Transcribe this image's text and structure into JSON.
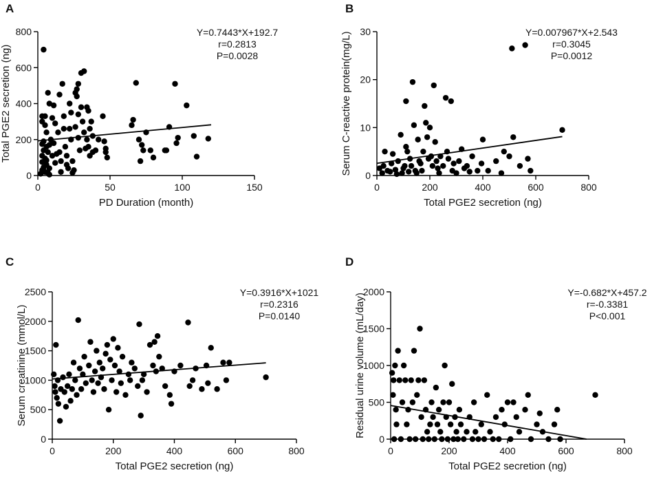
{
  "chart_data": [
    {
      "panel": "A",
      "type": "scatter",
      "xlabel": "PD Duration (month)",
      "ylabel": "Total PGE2 secretion (ng)",
      "xlim": [
        0,
        150
      ],
      "ylim": [
        0,
        800
      ],
      "xticks": [
        0,
        50,
        100,
        150
      ],
      "yticks": [
        0,
        200,
        400,
        600,
        800
      ],
      "annotation": [
        "Y=0.7443*X+192.7",
        "r=0.2813",
        "P=0.0028"
      ],
      "fit": {
        "slope": 0.7443,
        "intercept": 192.7,
        "x_range": [
          0,
          120
        ]
      },
      "points": [
        [
          4,
          700
        ],
        [
          3,
          330
        ],
        [
          5,
          330
        ],
        [
          3,
          300
        ],
        [
          5,
          280
        ],
        [
          6,
          240
        ],
        [
          4,
          190
        ],
        [
          3,
          175
        ],
        [
          6,
          160
        ],
        [
          4,
          140
        ],
        [
          3,
          110
        ],
        [
          5,
          95
        ],
        [
          3,
          75
        ],
        [
          6,
          60
        ],
        [
          4,
          45
        ],
        [
          3,
          30
        ],
        [
          5,
          20
        ],
        [
          7,
          15
        ],
        [
          2,
          10
        ],
        [
          8,
          5
        ],
        [
          9,
          200
        ],
        [
          8,
          170
        ],
        [
          7,
          130
        ],
        [
          10,
          110
        ],
        [
          6,
          85
        ],
        [
          8,
          40
        ],
        [
          7,
          460
        ],
        [
          8,
          400
        ],
        [
          11,
          390
        ],
        [
          10,
          320
        ],
        [
          12,
          290
        ],
        [
          11,
          180
        ],
        [
          13,
          120
        ],
        [
          12,
          70
        ],
        [
          15,
          450
        ],
        [
          17,
          510
        ],
        [
          14,
          240
        ],
        [
          15,
          130
        ],
        [
          16,
          80
        ],
        [
          16,
          20
        ],
        [
          18,
          330
        ],
        [
          18,
          260
        ],
        [
          19,
          160
        ],
        [
          20,
          110
        ],
        [
          20,
          60
        ],
        [
          22,
          400
        ],
        [
          23,
          350
        ],
        [
          22,
          260
        ],
        [
          23,
          200
        ],
        [
          21,
          40
        ],
        [
          24,
          80
        ],
        [
          25,
          30
        ],
        [
          24,
          15
        ],
        [
          26,
          460
        ],
        [
          28,
          510
        ],
        [
          27,
          480
        ],
        [
          27,
          440
        ],
        [
          28,
          340
        ],
        [
          26,
          270
        ],
        [
          28,
          210
        ],
        [
          30,
          570
        ],
        [
          32,
          580
        ],
        [
          30,
          380
        ],
        [
          31,
          300
        ],
        [
          32,
          240
        ],
        [
          29,
          140
        ],
        [
          33,
          150
        ],
        [
          34,
          380
        ],
        [
          34,
          200
        ],
        [
          35,
          360
        ],
        [
          35,
          160
        ],
        [
          36,
          260
        ],
        [
          36,
          110
        ],
        [
          37,
          300
        ],
        [
          38,
          220
        ],
        [
          38,
          130
        ],
        [
          40,
          140
        ],
        [
          42,
          200
        ],
        [
          45,
          330
        ],
        [
          46,
          190
        ],
        [
          47,
          150
        ],
        [
          47,
          130
        ],
        [
          48,
          100
        ],
        [
          65,
          280
        ],
        [
          66,
          310
        ],
        [
          68,
          515
        ],
        [
          70,
          200
        ],
        [
          72,
          170
        ],
        [
          71,
          80
        ],
        [
          73,
          140
        ],
        [
          75,
          240
        ],
        [
          78,
          140
        ],
        [
          80,
          100
        ],
        [
          88,
          140
        ],
        [
          89,
          140
        ],
        [
          91,
          270
        ],
        [
          95,
          510
        ],
        [
          96,
          180
        ],
        [
          97,
          210
        ],
        [
          103,
          390
        ],
        [
          108,
          220
        ],
        [
          110,
          105
        ],
        [
          118,
          205
        ]
      ]
    },
    {
      "panel": "B",
      "type": "scatter",
      "xlabel": "Total PGE2 secretion (ng)",
      "ylabel": "Serum C-reactive protein(mg/L)",
      "xlim": [
        0,
        800
      ],
      "ylim": [
        0,
        30
      ],
      "xticks": [
        0,
        200,
        400,
        600,
        800
      ],
      "yticks": [
        0,
        10,
        20,
        30
      ],
      "annotation": [
        "Y=0.007967*X+2.543",
        "r=0.3045",
        "P=0.0012"
      ],
      "fit": {
        "slope": 0.007967,
        "intercept": 2.543,
        "x_range": [
          0,
          700
        ]
      },
      "points": [
        [
          10,
          1.5
        ],
        [
          20,
          0.5
        ],
        [
          25,
          2
        ],
        [
          30,
          5
        ],
        [
          40,
          1
        ],
        [
          50,
          0.8
        ],
        [
          55,
          2.5
        ],
        [
          60,
          4.5
        ],
        [
          70,
          1.2
        ],
        [
          75,
          0.3
        ],
        [
          80,
          3
        ],
        [
          90,
          8.5
        ],
        [
          95,
          0.5
        ],
        [
          100,
          1.5
        ],
        [
          105,
          2
        ],
        [
          110,
          15.5
        ],
        [
          110,
          6
        ],
        [
          115,
          5
        ],
        [
          120,
          0.8
        ],
        [
          125,
          3.5
        ],
        [
          130,
          2
        ],
        [
          135,
          19.5
        ],
        [
          140,
          10.5
        ],
        [
          145,
          1
        ],
        [
          150,
          0.5
        ],
        [
          155,
          7.5
        ],
        [
          160,
          3
        ],
        [
          165,
          2.5
        ],
        [
          170,
          1
        ],
        [
          175,
          5
        ],
        [
          180,
          14.5
        ],
        [
          185,
          11
        ],
        [
          190,
          8
        ],
        [
          195,
          3.5
        ],
        [
          200,
          10
        ],
        [
          205,
          4
        ],
        [
          210,
          2
        ],
        [
          215,
          18.8
        ],
        [
          220,
          7
        ],
        [
          225,
          3
        ],
        [
          230,
          1.5
        ],
        [
          235,
          0.5
        ],
        [
          240,
          4
        ],
        [
          250,
          2
        ],
        [
          260,
          16.2
        ],
        [
          265,
          5
        ],
        [
          270,
          3.5
        ],
        [
          280,
          15.5
        ],
        [
          285,
          1
        ],
        [
          290,
          2.5
        ],
        [
          300,
          0.5
        ],
        [
          310,
          3
        ],
        [
          320,
          5.5
        ],
        [
          330,
          1.5
        ],
        [
          340,
          2
        ],
        [
          350,
          0.8
        ],
        [
          360,
          4
        ],
        [
          380,
          1
        ],
        [
          395,
          2.5
        ],
        [
          400,
          7.5
        ],
        [
          420,
          1
        ],
        [
          450,
          3
        ],
        [
          470,
          0.5
        ],
        [
          480,
          5
        ],
        [
          500,
          4
        ],
        [
          510,
          26.5
        ],
        [
          515,
          8
        ],
        [
          540,
          2
        ],
        [
          560,
          27.2
        ],
        [
          570,
          3.5
        ],
        [
          580,
          1
        ],
        [
          700,
          9.5
        ]
      ]
    },
    {
      "panel": "C",
      "type": "scatter",
      "xlabel": "Total PGE2 secretion (ng)",
      "ylabel": "Serum creatinine (mmol/L)",
      "xlim": [
        0,
        800
      ],
      "ylim": [
        0,
        2500
      ],
      "xticks": [
        0,
        200,
        400,
        600,
        800
      ],
      "yticks": [
        0,
        500,
        1000,
        1500,
        2000,
        2500
      ],
      "annotation": [
        "Y=0.3916*X+1021",
        "r=0.2316",
        "P=0.0140"
      ],
      "fit": {
        "slope": 0.3916,
        "intercept": 1021,
        "x_range": [
          0,
          700
        ]
      },
      "points": [
        [
          5,
          1100
        ],
        [
          8,
          900
        ],
        [
          10,
          800
        ],
        [
          12,
          1600
        ],
        [
          15,
          700
        ],
        [
          18,
          1000
        ],
        [
          20,
          600
        ],
        [
          25,
          310
        ],
        [
          28,
          850
        ],
        [
          35,
          1050
        ],
        [
          40,
          800
        ],
        [
          45,
          550
        ],
        [
          50,
          900
        ],
        [
          55,
          1100
        ],
        [
          60,
          650
        ],
        [
          65,
          850
        ],
        [
          70,
          1300
        ],
        [
          75,
          1000
        ],
        [
          80,
          750
        ],
        [
          85,
          2020
        ],
        [
          90,
          1200
        ],
        [
          95,
          850
        ],
        [
          100,
          1100
        ],
        [
          105,
          1400
        ],
        [
          110,
          950
        ],
        [
          120,
          1250
        ],
        [
          125,
          1650
        ],
        [
          130,
          1000
        ],
        [
          135,
          800
        ],
        [
          140,
          1150
        ],
        [
          145,
          1500
        ],
        [
          150,
          950
        ],
        [
          155,
          1300
        ],
        [
          160,
          1050
        ],
        [
          165,
          1200
        ],
        [
          170,
          850
        ],
        [
          175,
          1450
        ],
        [
          180,
          1600
        ],
        [
          185,
          500
        ],
        [
          190,
          1350
        ],
        [
          195,
          1000
        ],
        [
          200,
          1700
        ],
        [
          205,
          1250
        ],
        [
          210,
          800
        ],
        [
          215,
          1550
        ],
        [
          220,
          1150
        ],
        [
          225,
          950
        ],
        [
          230,
          1400
        ],
        [
          240,
          750
        ],
        [
          250,
          1100
        ],
        [
          255,
          1000
        ],
        [
          260,
          1300
        ],
        [
          270,
          1200
        ],
        [
          280,
          900
        ],
        [
          285,
          1950
        ],
        [
          290,
          400
        ],
        [
          295,
          1000
        ],
        [
          300,
          1100
        ],
        [
          310,
          800
        ],
        [
          320,
          1600
        ],
        [
          330,
          1250
        ],
        [
          335,
          1650
        ],
        [
          340,
          1150
        ],
        [
          345,
          1750
        ],
        [
          350,
          1400
        ],
        [
          360,
          1200
        ],
        [
          370,
          900
        ],
        [
          385,
          750
        ],
        [
          390,
          600
        ],
        [
          400,
          1150
        ],
        [
          420,
          1250
        ],
        [
          445,
          1980
        ],
        [
          450,
          900
        ],
        [
          460,
          1000
        ],
        [
          470,
          1200
        ],
        [
          490,
          850
        ],
        [
          505,
          1250
        ],
        [
          510,
          950
        ],
        [
          520,
          1550
        ],
        [
          540,
          850
        ],
        [
          560,
          1300
        ],
        [
          570,
          1000
        ],
        [
          580,
          1300
        ],
        [
          700,
          1050
        ]
      ]
    },
    {
      "panel": "D",
      "type": "scatter",
      "xlabel": "Total PGE2 secretion (ng)",
      "ylabel": "Residual urine volume (mL/day)",
      "xlim": [
        0,
        800
      ],
      "ylim": [
        0,
        2000
      ],
      "xticks": [
        0,
        200,
        400,
        600,
        800
      ],
      "yticks": [
        0,
        500,
        1000,
        1500,
        2000
      ],
      "annotation": [
        "Y=-0.682*X+457.2",
        "r=-0.3381",
        "P<0.001"
      ],
      "fit": {
        "slope": -0.682,
        "intercept": 457.2,
        "x_range": [
          0,
          670
        ]
      },
      "points": [
        [
          5,
          900
        ],
        [
          8,
          600
        ],
        [
          10,
          800
        ],
        [
          12,
          0
        ],
        [
          15,
          1000
        ],
        [
          18,
          400
        ],
        [
          20,
          200
        ],
        [
          25,
          1200
        ],
        [
          30,
          800
        ],
        [
          35,
          0
        ],
        [
          40,
          500
        ],
        [
          45,
          1000
        ],
        [
          50,
          800
        ],
        [
          55,
          200
        ],
        [
          60,
          400
        ],
        [
          65,
          0
        ],
        [
          70,
          800
        ],
        [
          75,
          500
        ],
        [
          80,
          1200
        ],
        [
          85,
          0
        ],
        [
          90,
          600
        ],
        [
          95,
          800
        ],
        [
          100,
          1500
        ],
        [
          105,
          300
        ],
        [
          110,
          0
        ],
        [
          115,
          800
        ],
        [
          120,
          400
        ],
        [
          125,
          100
        ],
        [
          130,
          0
        ],
        [
          135,
          200
        ],
        [
          140,
          500
        ],
        [
          145,
          300
        ],
        [
          150,
          0
        ],
        [
          155,
          700
        ],
        [
          160,
          200
        ],
        [
          165,
          400
        ],
        [
          170,
          100
        ],
        [
          175,
          0
        ],
        [
          180,
          500
        ],
        [
          185,
          1000
        ],
        [
          190,
          300
        ],
        [
          195,
          0
        ],
        [
          200,
          500
        ],
        [
          205,
          200
        ],
        [
          210,
          750
        ],
        [
          215,
          0
        ],
        [
          220,
          300
        ],
        [
          225,
          100
        ],
        [
          230,
          0
        ],
        [
          235,
          400
        ],
        [
          240,
          200
        ],
        [
          250,
          0
        ],
        [
          260,
          100
        ],
        [
          270,
          300
        ],
        [
          280,
          0
        ],
        [
          285,
          500
        ],
        [
          290,
          100
        ],
        [
          300,
          0
        ],
        [
          310,
          200
        ],
        [
          320,
          0
        ],
        [
          330,
          600
        ],
        [
          340,
          100
        ],
        [
          350,
          0
        ],
        [
          360,
          300
        ],
        [
          370,
          0
        ],
        [
          380,
          400
        ],
        [
          390,
          200
        ],
        [
          400,
          500
        ],
        [
          410,
          0
        ],
        [
          420,
          500
        ],
        [
          430,
          300
        ],
        [
          440,
          100
        ],
        [
          460,
          400
        ],
        [
          470,
          600
        ],
        [
          480,
          0
        ],
        [
          500,
          200
        ],
        [
          510,
          350
        ],
        [
          520,
          100
        ],
        [
          540,
          0
        ],
        [
          560,
          200
        ],
        [
          570,
          400
        ],
        [
          580,
          0
        ],
        [
          700,
          600
        ]
      ]
    }
  ]
}
